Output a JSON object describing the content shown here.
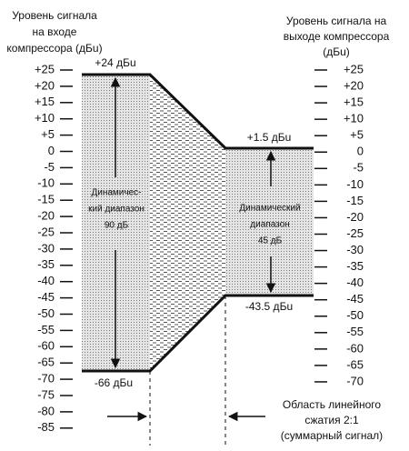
{
  "left_title": [
    "Уровень сигнала",
    "на входе",
    "компрессора (дБu)"
  ],
  "right_title": [
    "Уровень сигнала на",
    "выходе компрессора",
    "(дБu)"
  ],
  "left_scale": [
    "+25",
    "+20",
    "+15",
    "+10",
    "+5",
    "0",
    "-5",
    "-10",
    "-15",
    "-20",
    "-25",
    "-30",
    "-35",
    "-40",
    "-45",
    "-50",
    "-55",
    "-60",
    "-65",
    "-70",
    "-75",
    "-80",
    "-85"
  ],
  "right_scale": [
    "+25",
    "+20",
    "+15",
    "+10",
    "+5",
    "0",
    "-5",
    "-10",
    "-15",
    "-20",
    "-25",
    "-30",
    "-35",
    "-40",
    "-45",
    "-50",
    "-55",
    "-60",
    "-65",
    "-70"
  ],
  "levels": {
    "input_max": "+24 дБu",
    "input_min": "-66 дБu",
    "output_max": "+1.5 дБu",
    "output_min": "-43.5 дБu"
  },
  "input_range": [
    "Динамичес-",
    "кий диапазон",
    "90 дБ"
  ],
  "output_range": [
    "Динамический",
    "диапазон",
    "45 дБ"
  ],
  "region_note": [
    "Область линейного",
    "сжатия 2:1",
    "(суммарный сигнал)"
  ]
}
